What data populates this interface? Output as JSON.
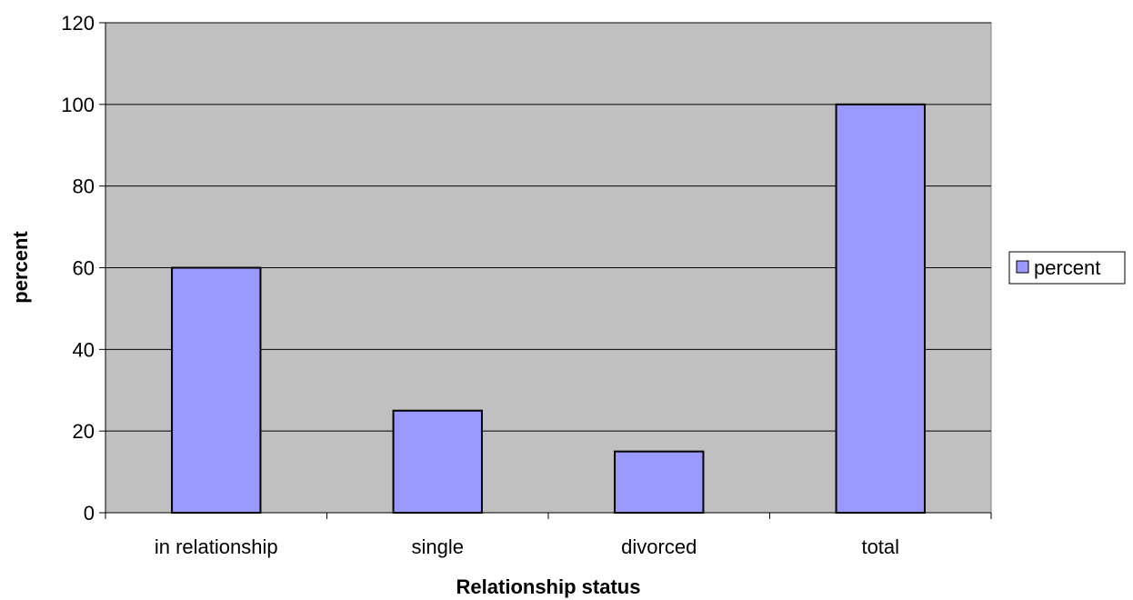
{
  "chart_data": {
    "type": "bar",
    "categories": [
      "in relationship",
      "single",
      "divorced",
      "total"
    ],
    "series": [
      {
        "name": "percent",
        "values": [
          60,
          25,
          15,
          100
        ]
      }
    ],
    "title": "",
    "xlabel": "Relationship status",
    "ylabel": "percent",
    "ylim": [
      0,
      120
    ],
    "yticks": [
      0,
      20,
      40,
      60,
      80,
      100,
      120
    ],
    "grid": true,
    "legend": "right"
  },
  "colors": {
    "plot_background": "#c0c0c0",
    "bar_fill": "#9999ff",
    "bar_stroke": "#000000",
    "gridline": "#000000"
  }
}
